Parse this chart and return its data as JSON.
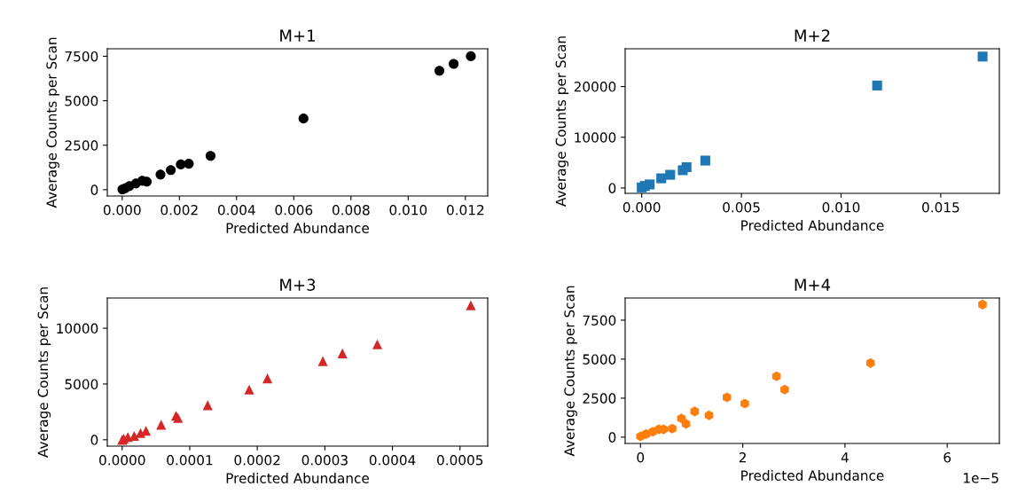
{
  "chart_data": [
    {
      "type": "scatter",
      "title": "M+1",
      "xlabel": "Predicted Abundance",
      "ylabel": "Average Counts per Scan",
      "marker": "circle",
      "grid": false,
      "legend": false,
      "series": [
        {
          "color": "#000000",
          "x": [
            1e-05,
            0.0001,
            0.00025,
            0.00048,
            0.0007,
            0.00086,
            0.00134,
            0.0017,
            0.00205,
            0.00233,
            0.00309,
            0.00634,
            0.01109,
            0.01159,
            0.01219
          ],
          "values": [
            20,
            80,
            200,
            350,
            500,
            450,
            850,
            1100,
            1420,
            1460,
            1900,
            4000,
            6680,
            7070,
            7500
          ]
        }
      ],
      "xlim": [
        -0.00052,
        0.01278
      ],
      "ylim": [
        -355,
        7920
      ],
      "xticks": [
        {
          "value": 0,
          "label": "0.000"
        },
        {
          "value": 0.002,
          "label": "0.002"
        },
        {
          "value": 0.004,
          "label": "0.004"
        },
        {
          "value": 0.006,
          "label": "0.006"
        },
        {
          "value": 0.008,
          "label": "0.008"
        },
        {
          "value": 0.01,
          "label": "0.010"
        },
        {
          "value": 0.012,
          "label": "0.012"
        }
      ],
      "yticks": [
        0,
        2500,
        5000,
        7500
      ]
    },
    {
      "type": "scatter",
      "title": "M+2",
      "xlabel": "Predicted Abundance",
      "ylabel": "Average Counts per Scan",
      "marker": "square",
      "grid": false,
      "legend": false,
      "series": [
        {
          "color": "#1f77b4",
          "x": [
            0,
            0.00016,
            0.0004,
            0.00098,
            0.00143,
            0.00206,
            0.00225,
            0.00319,
            0.01181,
            0.0171
          ],
          "values": [
            100,
            400,
            700,
            1900,
            2600,
            3500,
            4100,
            5400,
            20200,
            25900
          ]
        }
      ],
      "xlim": [
        -0.00083,
        0.01794
      ],
      "ylim": [
        -1060,
        27440
      ],
      "xticks": [
        {
          "value": 0,
          "label": "0.000"
        },
        {
          "value": 0.005,
          "label": "0.005"
        },
        {
          "value": 0.01,
          "label": "0.010"
        },
        {
          "value": 0.015,
          "label": "0.015"
        }
      ],
      "yticks": [
        0,
        10000,
        20000
      ]
    },
    {
      "type": "scatter",
      "title": "M+3",
      "xlabel": "Predicted Abundance",
      "ylabel": "Average Counts per Scan",
      "marker": "triangle",
      "grid": false,
      "legend": false,
      "series": [
        {
          "color": "#d62728",
          "x": [
            0,
            2.3e-06,
            8.4e-06,
            1.78e-05,
            2.72e-05,
            3.52e-05,
            5.77e-05,
            7.97e-05,
            8.26e-05,
            0.0001266,
            0.000188,
            0.000215,
            0.000297,
            0.000326,
            0.0003776,
            0.000516
          ],
          "values": [
            0,
            100,
            250,
            350,
            600,
            800,
            1350,
            2150,
            1950,
            3100,
            4500,
            5500,
            7050,
            7750,
            8550,
            12050
          ]
        }
      ],
      "xlim": [
        -2.2e-05,
        0.000541
      ],
      "ylim": [
        -570,
        12710
      ],
      "xticks": [
        {
          "value": 0,
          "label": "0.0000"
        },
        {
          "value": 0.0001,
          "label": "0.0001"
        },
        {
          "value": 0.0002,
          "label": "0.0002"
        },
        {
          "value": 0.0003,
          "label": "0.0003"
        },
        {
          "value": 0.0004,
          "label": "0.0004"
        },
        {
          "value": 0.0005,
          "label": "0.0005"
        }
      ],
      "yticks": [
        0,
        5000,
        10000
      ]
    },
    {
      "type": "scatter",
      "title": "M+4",
      "xlabel": "Predicted Abundance",
      "ylabel": "Average Counts per Scan",
      "grid": false,
      "legend": false,
      "series": [
        {
          "color": "#ff7f0e",
          "x": [
            0,
            0.11,
            0.24,
            0.36,
            0.45,
            0.62,
            0.8,
            0.89,
            1.06,
            1.34,
            1.69,
            2.04,
            2.66,
            2.82,
            4.5,
            6.69
          ],
          "values": [
            50,
            200,
            350,
            500,
            500,
            550,
            1200,
            850,
            1650,
            1400,
            2550,
            2150,
            3900,
            3050,
            4750,
            8500
          ]
        }
      ],
      "xlim": [
        -0.3,
        7.02
      ],
      "ylim": [
        -405,
        8920
      ],
      "xticks": [
        0,
        2,
        4,
        6
      ],
      "yticks": [
        0,
        2500,
        5000,
        7500
      ],
      "annotations": [
        "1e−5"
      ]
    }
  ]
}
